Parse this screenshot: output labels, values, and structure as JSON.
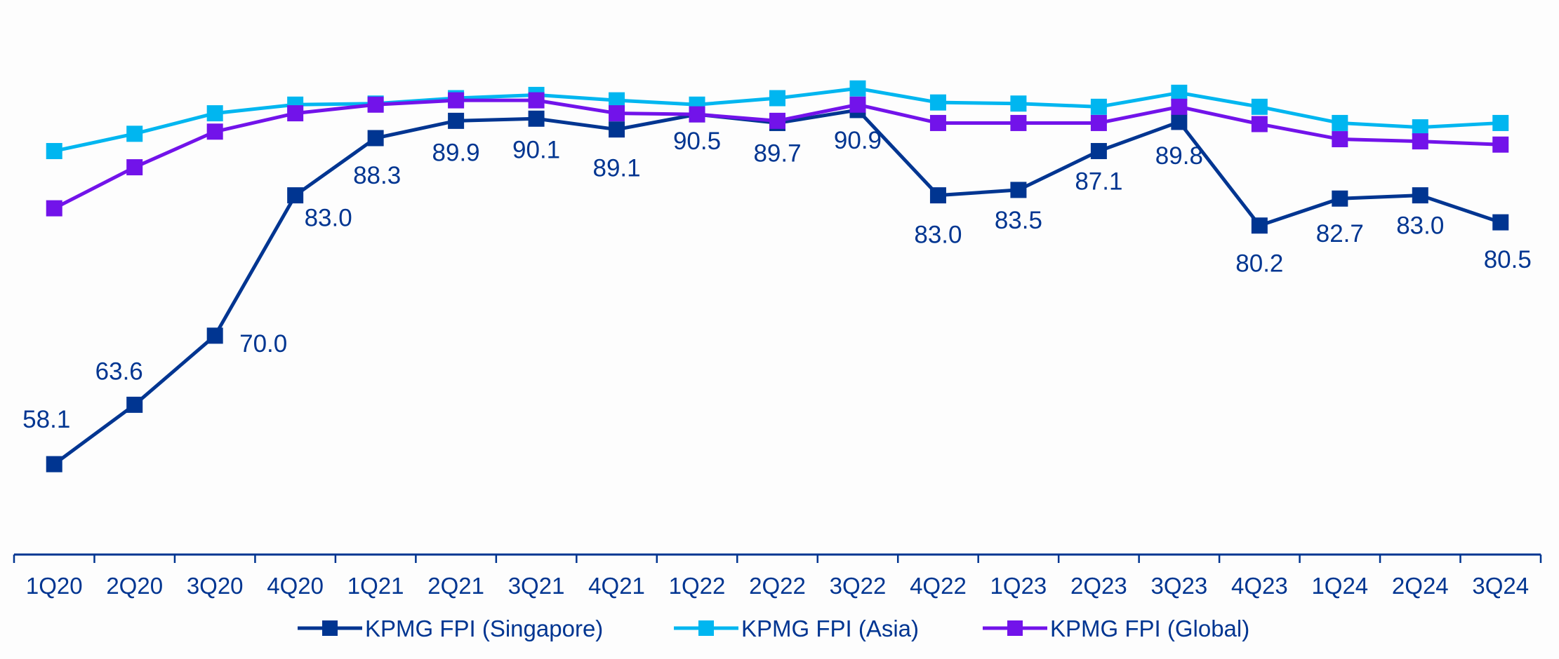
{
  "chart_data": {
    "type": "line",
    "title": "",
    "xlabel": "",
    "ylabel": "",
    "ylim": [
      50,
      101
    ],
    "grid": false,
    "legend_position": "bottom",
    "categories": [
      "1Q20",
      "2Q20",
      "3Q20",
      "4Q20",
      "1Q21",
      "2Q21",
      "3Q21",
      "4Q21",
      "1Q22",
      "2Q22",
      "3Q22",
      "4Q22",
      "1Q23",
      "2Q23",
      "3Q23",
      "4Q23",
      "1Q24",
      "2Q24",
      "3Q24"
    ],
    "series": [
      {
        "name": "KPMG FPI (Singapore)",
        "color": "#003591",
        "show_labels": true,
        "values": [
          58.1,
          63.6,
          70.0,
          83.0,
          88.3,
          89.9,
          90.1,
          89.1,
          90.5,
          89.7,
          90.9,
          83.0,
          83.5,
          87.1,
          89.8,
          80.2,
          82.7,
          83.0,
          80.5
        ],
        "labels": [
          "58.1",
          "63.6",
          "70.0",
          "83.0",
          "88.3",
          "89.9",
          "90.1",
          "89.1",
          "90.5",
          "89.7",
          "90.9",
          "83.0",
          "83.5",
          "87.1",
          "89.8",
          "80.2",
          "82.7",
          "83.0",
          "80.5"
        ]
      },
      {
        "name": "KPMG FPI (Asia)",
        "color": "#00B6F0",
        "show_labels": false,
        "values": [
          87.1,
          88.7,
          90.6,
          91.4,
          91.5,
          92.0,
          92.3,
          91.8,
          91.4,
          92.0,
          92.9,
          91.6,
          91.5,
          91.2,
          92.5,
          91.2,
          89.7,
          89.3,
          89.7
        ]
      },
      {
        "name": "KPMG FPI (Global)",
        "color": "#7213EA",
        "show_labels": false,
        "values": [
          81.8,
          85.6,
          88.9,
          90.6,
          91.4,
          91.8,
          91.8,
          90.6,
          90.5,
          89.9,
          91.4,
          89.7,
          89.7,
          89.7,
          91.2,
          89.6,
          88.2,
          88.0,
          87.7
        ]
      }
    ],
    "axis_color": "#003591"
  }
}
